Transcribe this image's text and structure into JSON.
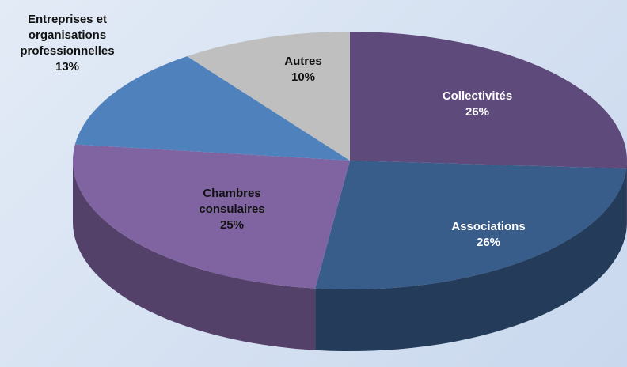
{
  "chart_data": {
    "type": "pie",
    "categories": [
      "Collectivités",
      "Associations",
      "Chambres consulaires",
      "Entreprises et organisations professionnelles",
      "Autres"
    ],
    "values": [
      26,
      26,
      25,
      13,
      10
    ],
    "value_labels": [
      "26%",
      "26%",
      "25%",
      "13%",
      "10%"
    ],
    "colors": [
      "#5f4b7b",
      "#385d8a",
      "#8064a2",
      "#4f81bd",
      "#bfbfbf"
    ]
  }
}
